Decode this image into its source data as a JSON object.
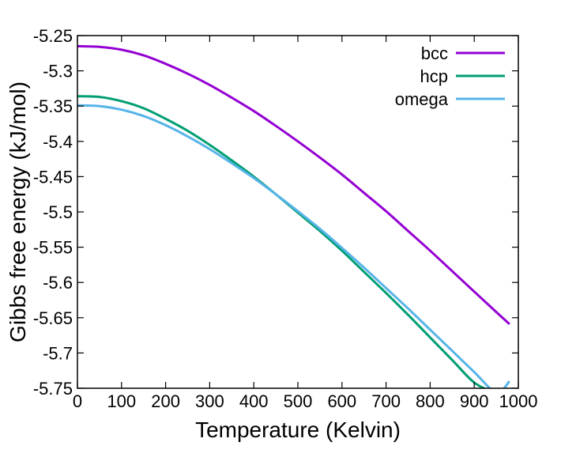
{
  "chart_data": {
    "type": "line",
    "title": "",
    "xlabel": "Temperature (Kelvin)",
    "ylabel": "Gibbs free energy (kJ/mol)",
    "xlim": [
      0,
      1000
    ],
    "ylim": [
      -5.75,
      -5.25
    ],
    "xticks": [
      "0",
      "100",
      "200",
      "300",
      "400",
      "500",
      "600",
      "700",
      "800",
      "900",
      "1000"
    ],
    "yticks": [
      "-5.25",
      "-5.3",
      "-5.35",
      "-5.4",
      "-5.45",
      "-5.5",
      "-5.55",
      "-5.6",
      "-5.65",
      "-5.7",
      "-5.75"
    ],
    "grid": false,
    "legend_position": "top-right",
    "series": [
      {
        "name": "bcc",
        "color": "#9400d3",
        "x": [
          0,
          50,
          100,
          150,
          200,
          250,
          300,
          350,
          400,
          450,
          500,
          550,
          600,
          650,
          700,
          750,
          800,
          850,
          900,
          950,
          980
        ],
        "y": [
          -5.265,
          -5.266,
          -5.27,
          -5.278,
          -5.29,
          -5.304,
          -5.32,
          -5.338,
          -5.357,
          -5.378,
          -5.4,
          -5.423,
          -5.447,
          -5.473,
          -5.499,
          -5.527,
          -5.555,
          -5.584,
          -5.613,
          -5.642,
          -5.659
        ]
      },
      {
        "name": "hcp",
        "color": "#009e73",
        "x": [
          0,
          50,
          100,
          150,
          200,
          250,
          300,
          350,
          400,
          450,
          500,
          550,
          600,
          650,
          700,
          750,
          800,
          850,
          900,
          950,
          980
        ],
        "y": [
          -5.336,
          -5.337,
          -5.343,
          -5.353,
          -5.368,
          -5.385,
          -5.405,
          -5.427,
          -5.45,
          -5.475,
          -5.501,
          -5.527,
          -5.555,
          -5.585,
          -5.615,
          -5.646,
          -5.678,
          -5.71,
          -5.742,
          -5.76,
          -5.79
        ]
      },
      {
        "name": "omega",
        "color": "#56b4e9",
        "x": [
          0,
          50,
          100,
          150,
          200,
          250,
          300,
          350,
          400,
          450,
          500,
          550,
          600,
          650,
          700,
          750,
          800,
          850,
          900,
          950,
          980
        ],
        "y": [
          -5.349,
          -5.35,
          -5.355,
          -5.364,
          -5.377,
          -5.393,
          -5.411,
          -5.431,
          -5.452,
          -5.475,
          -5.499,
          -5.524,
          -5.551,
          -5.579,
          -5.608,
          -5.637,
          -5.667,
          -5.697,
          -5.727,
          -5.756,
          -5.74
        ]
      }
    ]
  }
}
